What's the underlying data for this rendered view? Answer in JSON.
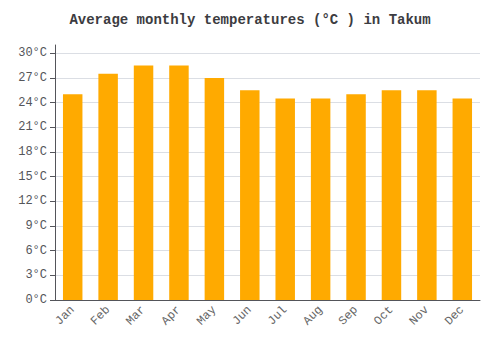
{
  "chart_data": {
    "type": "bar",
    "title": "Average monthly temperatures (°C ) in Takum",
    "categories": [
      "Jan",
      "Feb",
      "Mar",
      "Apr",
      "May",
      "Jun",
      "Jul",
      "Aug",
      "Sep",
      "Oct",
      "Nov",
      "Dec"
    ],
    "values": [
      25.0,
      27.5,
      28.5,
      28.5,
      27.0,
      25.5,
      24.5,
      24.5,
      25.0,
      25.5,
      25.5,
      24.5
    ],
    "color": "#FFAA00",
    "ylim": [
      0,
      31
    ],
    "yticks": [
      {
        "value": 0,
        "label": "0°C"
      },
      {
        "value": 3,
        "label": "3°C"
      },
      {
        "value": 6,
        "label": "6°C"
      },
      {
        "value": 9,
        "label": "9°C"
      },
      {
        "value": 12,
        "label": "12°C"
      },
      {
        "value": 15,
        "label": "15°C"
      },
      {
        "value": 18,
        "label": "18°C"
      },
      {
        "value": 21,
        "label": "21°C"
      },
      {
        "value": 24,
        "label": "24°C"
      },
      {
        "value": 27,
        "label": "27°C"
      },
      {
        "value": 30,
        "label": "30°C"
      }
    ],
    "grid": true
  }
}
